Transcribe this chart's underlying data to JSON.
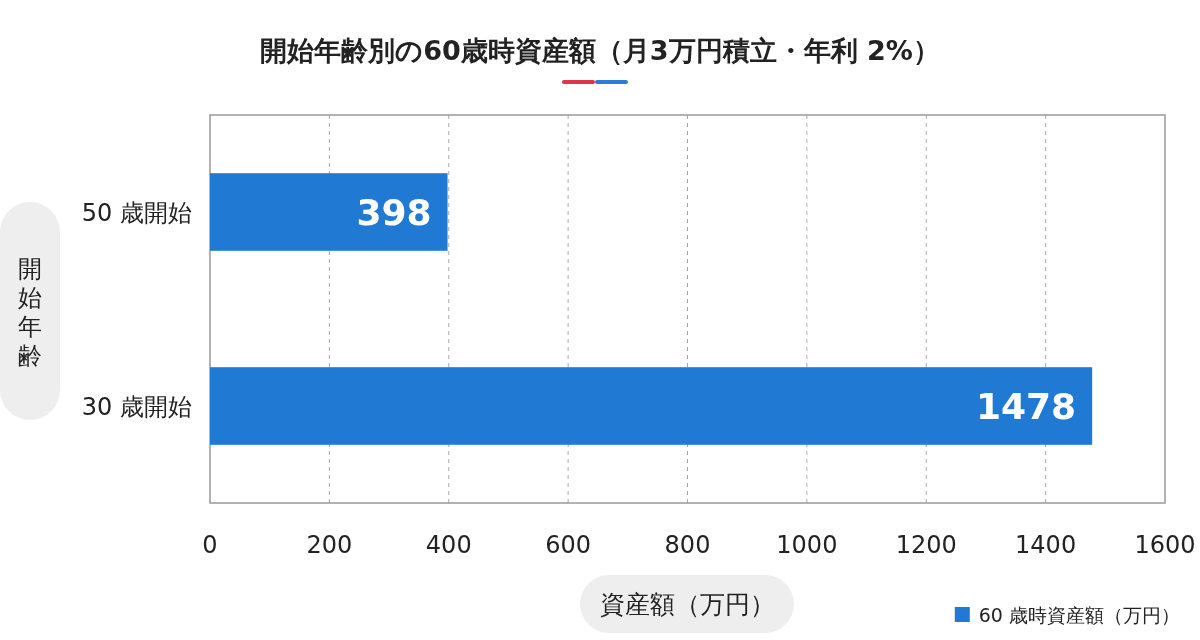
{
  "chart_data": {
    "type": "bar",
    "orientation": "horizontal",
    "title": "開始年齢別の60歳時資産額（月3万円積立・年利 2%）",
    "xlabel": "資産額（万円）",
    "ylabel": "開始年齢",
    "categories": [
      "50 歳開始",
      "30 歳開始"
    ],
    "series": [
      {
        "name": "60 歳時資産額（万円）",
        "color": "#2079d2",
        "values": [
          398,
          1478
        ]
      }
    ],
    "xlim": [
      0,
      1600
    ],
    "xticks": [
      0,
      200,
      400,
      600,
      800,
      1000,
      1200,
      1400,
      1600
    ],
    "grid": "x",
    "legend": "bottom right",
    "data_labels": true
  }
}
